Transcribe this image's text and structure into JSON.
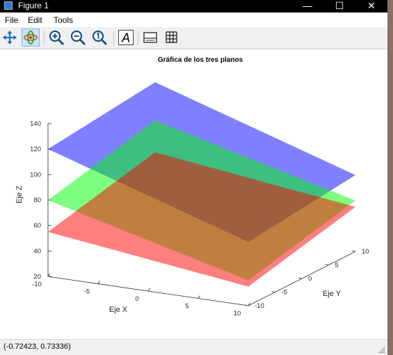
{
  "window": {
    "title": "Figure 1"
  },
  "menu": {
    "file": "File",
    "edit": "Edit",
    "tools": "Tools"
  },
  "plot": {
    "title": "Gráfica de los tres planos",
    "xlabel": "Eje X",
    "ylabel": "Eje Y",
    "zlabel": "Eje Z",
    "x_ticks": [
      "-10",
      "-5",
      "0",
      "5",
      "10"
    ],
    "y_ticks": [
      "-10",
      "-5",
      "0",
      "5",
      "10"
    ],
    "z_ticks": [
      "20",
      "40",
      "60",
      "80",
      "100",
      "120",
      "140"
    ]
  },
  "chart_data": {
    "type": "surface",
    "title": "Gráfica de los tres planos",
    "xlabel": "Eje X",
    "ylabel": "Eje Y",
    "zlabel": "Eje Z",
    "xlim": [
      -10,
      10
    ],
    "ylim": [
      -10,
      10
    ],
    "zlim": [
      20,
      140
    ],
    "grid": false,
    "series": [
      {
        "color": "#0000ff",
        "corners_z": [
          120,
          130,
          80,
          70
        ]
      },
      {
        "color": "#00ff00",
        "corners_z": [
          80,
          100,
          60,
          40
        ]
      },
      {
        "color": "#ff0000",
        "corners_z": [
          55,
          75,
          55,
          35
        ]
      }
    ]
  },
  "status": {
    "coords": "(-0.72423, 0.73336)"
  },
  "colors": {
    "plane_1": "#0000ff",
    "plane_2": "#00ff00",
    "plane_3": "#ff0000",
    "titlebar": "#000000"
  }
}
